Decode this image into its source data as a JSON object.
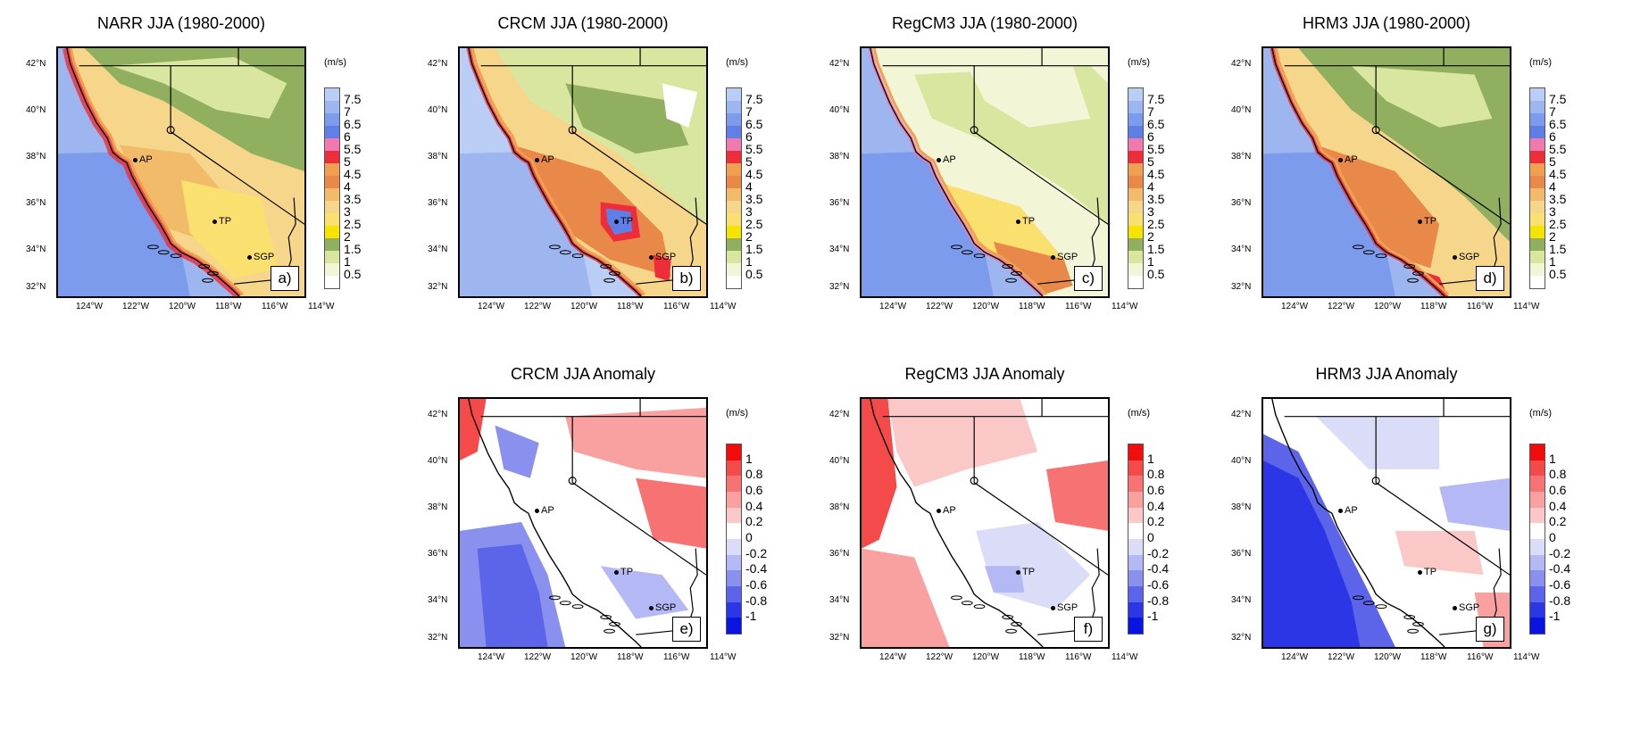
{
  "panels": [
    {
      "title": "NARR JJA (1980-2000)",
      "letter": "a)",
      "kind": "speed"
    },
    {
      "title": "CRCM JJA (1980-2000)",
      "letter": "b)",
      "kind": "speed"
    },
    {
      "title": "RegCM3 JJA (1980-2000)",
      "letter": "c)",
      "kind": "speed"
    },
    {
      "title": "HRM3 JJA (1980-2000)",
      "letter": "d)",
      "kind": "speed"
    },
    {
      "title": "CRCM JJA Anomaly",
      "letter": "e)",
      "kind": "anom"
    },
    {
      "title": "RegCM3 JJA Anomaly",
      "letter": "f)",
      "kind": "anom"
    },
    {
      "title": "HRM3 JJA Anomaly",
      "letter": "g)",
      "kind": "anom"
    }
  ],
  "lat_ticks": [
    "42°N",
    "40°N",
    "38°N",
    "36°N",
    "34°N",
    "32°N"
  ],
  "lon_ticks": [
    "124°W",
    "122°W",
    "120°W",
    "118°W",
    "116°W",
    "114°W"
  ],
  "unit": "(m/s)",
  "sites": [
    "AP",
    "TP",
    "SGP"
  ],
  "speed_colorbar": {
    "labels": [
      "7.5",
      "7",
      "6.5",
      "6",
      "5.5",
      "5",
      "4.5",
      "4",
      "3.5",
      "3",
      "2.5",
      "2",
      "1.5",
      "1",
      "0.5"
    ],
    "colors": [
      "#b9cdf5",
      "#9db6f0",
      "#7d9bec",
      "#5f7fe6",
      "#f07ab0",
      "#ee2d3a",
      "#f0a050",
      "#e8894a",
      "#f2bb6a",
      "#f6d68a",
      "#fae06e",
      "#f5e400",
      "#90b060",
      "#d8e6a0",
      "#f2f5d6",
      "#ffffff"
    ]
  },
  "anom_colorbar": {
    "labels": [
      "1",
      "0.8",
      "0.6",
      "0.4",
      "0.2",
      "0",
      "-0.2",
      "-0.4",
      "-0.6",
      "-0.8",
      "-1"
    ],
    "colors": [
      "#f20d0d",
      "#f44a4a",
      "#f77272",
      "#f9a0a0",
      "#fbc8c8",
      "#ffffff",
      "#dadcf8",
      "#b4b8f4",
      "#8a90ee",
      "#5c64ea",
      "#2d36e6",
      "#0a14e0"
    ]
  }
}
